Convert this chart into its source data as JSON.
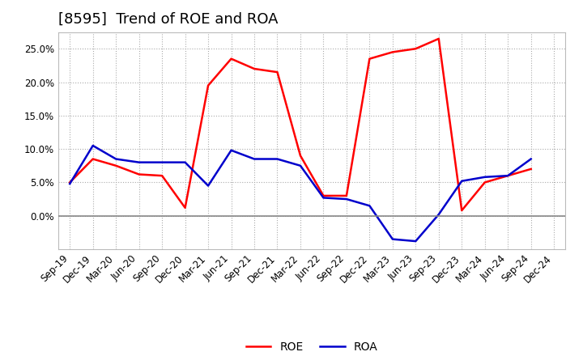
{
  "title": "[8595]  Trend of ROE and ROA",
  "x_labels": [
    "Sep-19",
    "Dec-19",
    "Mar-20",
    "Jun-20",
    "Sep-20",
    "Dec-20",
    "Mar-21",
    "Jun-21",
    "Sep-21",
    "Dec-21",
    "Mar-22",
    "Jun-22",
    "Sep-22",
    "Dec-22",
    "Mar-23",
    "Jun-23",
    "Sep-23",
    "Dec-23",
    "Mar-24",
    "Jun-24",
    "Sep-24",
    "Dec-24"
  ],
  "roe": [
    5.0,
    8.5,
    7.5,
    6.2,
    6.0,
    1.2,
    19.5,
    23.5,
    22.0,
    21.5,
    9.0,
    3.0,
    3.0,
    23.5,
    24.5,
    25.0,
    26.5,
    0.8,
    5.0,
    6.0,
    7.0,
    null
  ],
  "roa": [
    4.8,
    10.5,
    8.5,
    8.0,
    8.0,
    8.0,
    4.5,
    9.8,
    8.5,
    8.5,
    7.5,
    2.7,
    2.5,
    1.5,
    -3.5,
    -3.8,
    0.2,
    5.2,
    5.8,
    6.0,
    8.5,
    null
  ],
  "roe_color": "#FF0000",
  "roa_color": "#0000CC",
  "background_color": "#FFFFFF",
  "plot_bg_color": "#FFFFFF",
  "grid_color": "#AAAAAA",
  "ylim": [
    -5.0,
    27.5
  ],
  "yticks": [
    0.0,
    5.0,
    10.0,
    15.0,
    20.0,
    25.0
  ],
  "legend_labels": [
    "ROE",
    "ROA"
  ],
  "title_fontsize": 13,
  "tick_fontsize": 8.5
}
